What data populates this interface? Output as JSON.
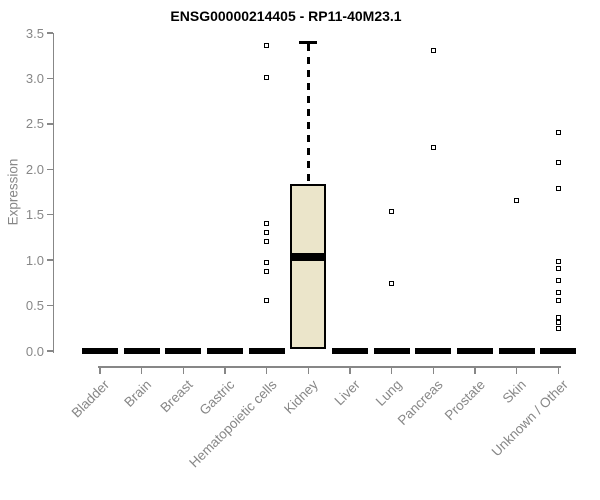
{
  "title": "ENSG00000214405 - RP11-40M23.1",
  "chart_data": {
    "type": "boxplot",
    "title": "ENSG00000214405 - RP11-40M23.1",
    "ylabel": "Expression",
    "xlabel": "",
    "ylim": [
      0,
      3.5
    ],
    "yticks": [
      "0.0",
      "0.5",
      "1.0",
      "1.5",
      "2.0",
      "2.5",
      "3.0",
      "3.5"
    ],
    "grid": "off",
    "legend": "none",
    "categories": [
      "Bladder",
      "Brain",
      "Breast",
      "Gastric",
      "Hematopoietic cells",
      "Kidney",
      "Liver",
      "Lung",
      "Pancreas",
      "Prostate",
      "Skin",
      "Unknown / Other"
    ],
    "boxes": [
      {
        "category": "Bladder",
        "q1": 0,
        "median": 0,
        "q3": 0,
        "whisker_low": 0,
        "whisker_high": 0,
        "outliers": []
      },
      {
        "category": "Brain",
        "q1": 0,
        "median": 0,
        "q3": 0,
        "whisker_low": 0,
        "whisker_high": 0,
        "outliers": []
      },
      {
        "category": "Breast",
        "q1": 0,
        "median": 0,
        "q3": 0,
        "whisker_low": 0,
        "whisker_high": 0,
        "outliers": []
      },
      {
        "category": "Gastric",
        "q1": 0,
        "median": 0,
        "q3": 0,
        "whisker_low": 0,
        "whisker_high": 0,
        "outliers": []
      },
      {
        "category": "Hematopoietic cells",
        "q1": 0,
        "median": 0,
        "q3": 0,
        "whisker_low": 0,
        "whisker_high": 0,
        "outliers": [
          3.36,
          3.01,
          1.4,
          1.3,
          1.21,
          0.97,
          0.87,
          0.56
        ]
      },
      {
        "category": "Kidney",
        "q1": 0.02,
        "median": 1.03,
        "q3": 1.84,
        "whisker_low": 0,
        "whisker_high": 3.4,
        "outliers": []
      },
      {
        "category": "Liver",
        "q1": 0,
        "median": 0,
        "q3": 0,
        "whisker_low": 0,
        "whisker_high": 0,
        "outliers": []
      },
      {
        "category": "Lung",
        "q1": 0,
        "median": 0,
        "q3": 0,
        "whisker_low": 0,
        "whisker_high": 0,
        "outliers": [
          1.53,
          0.74
        ]
      },
      {
        "category": "Pancreas",
        "q1": 0,
        "median": 0,
        "q3": 0,
        "whisker_low": 0,
        "whisker_high": 0,
        "outliers": [
          3.31,
          2.24
        ]
      },
      {
        "category": "Prostate",
        "q1": 0,
        "median": 0,
        "q3": 0,
        "whisker_low": 0,
        "whisker_high": 0,
        "outliers": []
      },
      {
        "category": "Skin",
        "q1": 0,
        "median": 0,
        "q3": 0,
        "whisker_low": 0,
        "whisker_high": 0,
        "outliers": [
          1.66
        ]
      },
      {
        "category": "Unknown / Other",
        "q1": 0,
        "median": 0,
        "q3": 0,
        "whisker_low": 0,
        "whisker_high": 0,
        "outliers": [
          2.41,
          2.08,
          1.79,
          0.98,
          0.91,
          0.78,
          0.64,
          0.56,
          0.37,
          0.31,
          0.25
        ]
      }
    ],
    "colors": {
      "box_fill": "#EBE5CA",
      "box_border": "#000000",
      "median": "#000000",
      "outlier": "#000000",
      "axis": "#878787",
      "title_text": "#000000"
    }
  }
}
